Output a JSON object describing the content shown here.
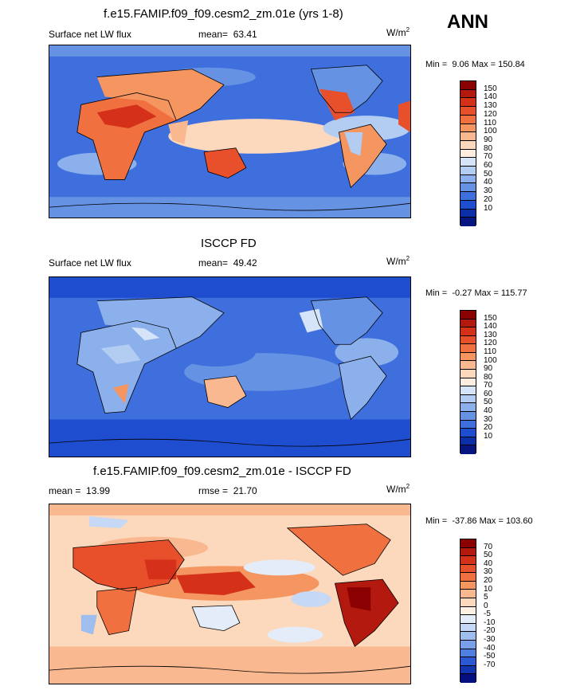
{
  "season": "ANN",
  "units_base": "W/m",
  "units_exp": "2",
  "panels": [
    {
      "title": "f.e15.FAMIP.f09_f09.cesm2_zm.01e (yrs 1-8)",
      "variable": "Surface net LW flux",
      "stat_label": "mean=",
      "stat_value": "63.41",
      "min_label": "Min =",
      "min_value": "9.06",
      "max_label": "Max =",
      "max_value": "150.84"
    },
    {
      "title": "ISCCP FD",
      "variable": "Surface net LW flux",
      "stat_label": "mean=",
      "stat_value": "49.42",
      "min_label": "Min =",
      "min_value": "-0.27",
      "max_label": "Max =",
      "max_value": "115.77"
    },
    {
      "title": "f.e15.FAMIP.f09_f09.cesm2_zm.01e - ISCCP FD",
      "mean_label": "mean =",
      "mean_value": "13.99",
      "rmse_label": "rmse =",
      "rmse_value": "21.70",
      "min_label": "Min =",
      "min_value": "-37.86",
      "max_label": "Max =",
      "max_value": "103.60"
    }
  ],
  "colorbars": {
    "abs_ticks": [
      "150",
      "140",
      "130",
      "120",
      "110",
      "100",
      "90",
      "80",
      "70",
      "60",
      "50",
      "40",
      "30",
      "20",
      "10"
    ],
    "abs_colors": [
      "#8b0000",
      "#b3190e",
      "#d4301a",
      "#e8502c",
      "#f07040",
      "#f59560",
      "#f9b88f",
      "#fcd9bd",
      "#ffeee0",
      "#d5e4f8",
      "#b2ccf2",
      "#8cb0eb",
      "#6692e4",
      "#3e6fdc",
      "#1f4dd0",
      "#0c2ea8",
      "#06157f"
    ],
    "diff_ticks": [
      "70",
      "50",
      "40",
      "30",
      "20",
      "10",
      "5",
      "0",
      "-5",
      "-10",
      "-20",
      "-30",
      "-40",
      "-50",
      "-70"
    ],
    "diff_colors": [
      "#8b0000",
      "#b3190e",
      "#d4301a",
      "#e8502c",
      "#f07040",
      "#f59560",
      "#f9b88f",
      "#fcd9bd",
      "#fff0e4",
      "#e4ecfa",
      "#c5d8f5",
      "#9fbdee",
      "#789fe7",
      "#4f7fe0",
      "#2c58d3",
      "#1335b0",
      "#060f80"
    ]
  },
  "chart_data": [
    {
      "type": "heatmap",
      "title": "f.e15.FAMIP.f09_f09.cesm2_zm.01e (yrs 1-8)",
      "variable": "Surface net LW flux",
      "units": "W/m2",
      "mean": 63.41,
      "min": 9.06,
      "max": 150.84,
      "colorbar_levels": [
        10,
        20,
        30,
        40,
        50,
        60,
        70,
        80,
        90,
        100,
        110,
        120,
        130,
        140,
        150
      ]
    },
    {
      "type": "heatmap",
      "title": "ISCCP FD",
      "variable": "Surface net LW flux",
      "units": "W/m2",
      "mean": 49.42,
      "min": -0.27,
      "max": 115.77,
      "colorbar_levels": [
        10,
        20,
        30,
        40,
        50,
        60,
        70,
        80,
        90,
        100,
        110,
        120,
        130,
        140,
        150
      ]
    },
    {
      "type": "heatmap",
      "title": "f.e15.FAMIP.f09_f09.cesm2_zm.01e - ISCCP FD",
      "units": "W/m2",
      "mean": 13.99,
      "rmse": 21.7,
      "min": -37.86,
      "max": 103.6,
      "colorbar_levels": [
        -70,
        -50,
        -40,
        -30,
        -20,
        -10,
        -5,
        0,
        5,
        10,
        20,
        30,
        40,
        50,
        70
      ]
    }
  ]
}
